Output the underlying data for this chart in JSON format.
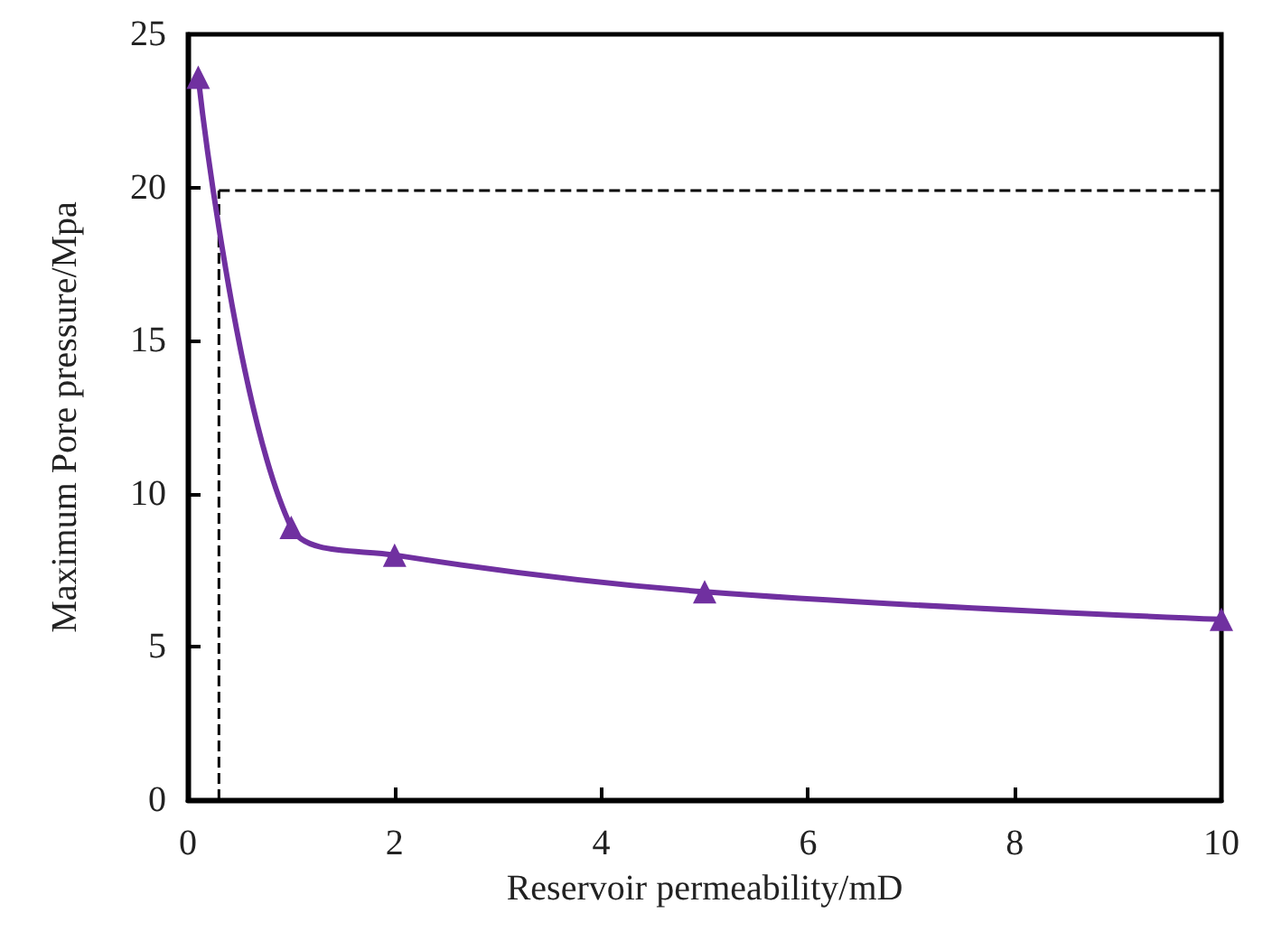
{
  "chart_data": {
    "type": "line",
    "xlabel": "Reservoir permeability/mD",
    "ylabel": "Maximum Pore pressure/Mpa",
    "x": [
      0.1,
      1,
      2,
      5,
      10
    ],
    "series": [
      {
        "color": "#7030a0",
        "values": [
          23.6,
          8.9,
          8.0,
          6.8,
          5.9
        ]
      }
    ],
    "xlim": [
      0,
      10
    ],
    "xticks": [
      0,
      2,
      4,
      6,
      8,
      10
    ],
    "ylim": [
      0,
      25
    ],
    "yticks": [
      0,
      5,
      10,
      15,
      20,
      25
    ],
    "ref_lines": [
      {
        "axis": "y",
        "value": 19.9,
        "color": "#000000",
        "line_style": "dashed"
      },
      {
        "axis": "x",
        "value": 0.3,
        "color": "#000000",
        "line_style": "dashed"
      }
    ],
    "marker": "triangle",
    "line_style": "solid",
    "grid": false
  }
}
